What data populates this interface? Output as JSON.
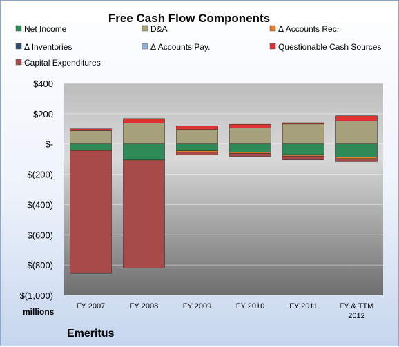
{
  "chart_data": {
    "type": "bar",
    "stacked": true,
    "title": "Free Cash Flow Components",
    "ylabel": "millions",
    "footer": "Emeritus",
    "ylim": [
      -1000,
      400
    ],
    "yticks": [
      400,
      200,
      0,
      -200,
      -400,
      -600,
      -800,
      -1000
    ],
    "ytick_labels": [
      "$400",
      "$200",
      "$-",
      "$(200)",
      "$(400)",
      "$(600)",
      "$(800)",
      "$(1,000)"
    ],
    "categories": [
      "FY 2007",
      "FY 2008",
      "FY 2009",
      "FY 2010",
      "FY 2011",
      "FY & TTM\n2012"
    ],
    "legend_position": "top",
    "series": [
      {
        "name": "Net Income",
        "color": "#2e8b57",
        "values": [
          -40,
          -105,
          -45,
          -55,
          -70,
          -85
        ]
      },
      {
        "name": "D&A",
        "color": "#a6a17a",
        "values": [
          88,
          138,
          95,
          105,
          132,
          152
        ]
      },
      {
        "name": "Δ Accounts Rec.",
        "color": "#e07b2a",
        "values": [
          -5,
          -5,
          -8,
          -8,
          -10,
          -12
        ]
      },
      {
        "name": "Δ Inventories",
        "color": "#2f4f6f",
        "values": [
          0,
          0,
          0,
          0,
          0,
          0
        ]
      },
      {
        "name": "Δ Accounts Pay.",
        "color": "#8fb0d8",
        "values": [
          0,
          0,
          0,
          0,
          0,
          0
        ]
      },
      {
        "name": "Questionable Cash Sources",
        "color": "#e03030",
        "values": [
          12,
          30,
          25,
          25,
          8,
          35
        ]
      },
      {
        "name": "Capital Expenditures",
        "color": "#a94a4a",
        "values": [
          -810,
          -710,
          -20,
          -20,
          -25,
          -20
        ]
      }
    ]
  }
}
